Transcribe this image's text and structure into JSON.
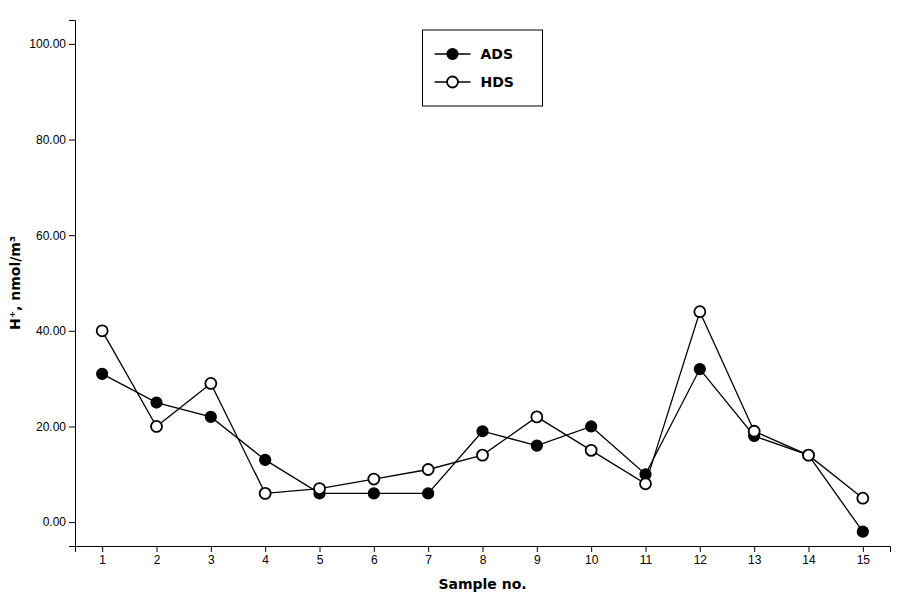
{
  "chart_data": {
    "type": "line",
    "x_label": "Sample no.",
    "y_label": "H⁺, nmol/m³",
    "x": [
      1,
      2,
      3,
      4,
      5,
      6,
      7,
      8,
      9,
      10,
      11,
      12,
      13,
      14,
      15
    ],
    "series": [
      {
        "name": "ADS",
        "color": "#000000",
        "marker": "circle",
        "values": [
          31,
          25,
          22,
          13,
          6,
          6,
          6,
          19,
          16,
          20,
          10,
          32,
          18,
          14,
          -2
        ]
      },
      {
        "name": "HDS",
        "color": "#000000",
        "marker": "open-circle",
        "values": [
          40,
          20,
          29,
          6,
          7,
          9,
          11,
          14,
          22,
          15,
          8,
          44,
          19,
          14,
          5
        ]
      }
    ],
    "xlim": [
      0.5,
      15.5
    ],
    "xticks": [
      1,
      2,
      3,
      4,
      5,
      6,
      7,
      8,
      9,
      10,
      11,
      12,
      13,
      14,
      15
    ],
    "ylim": [
      -5,
      105
    ],
    "yticks": [
      {
        "value": 0,
        "label": "0.00"
      },
      {
        "value": 20,
        "label": "20.00"
      },
      {
        "value": 40,
        "label": "40.00"
      },
      {
        "value": 60,
        "label": "60.00"
      },
      {
        "value": 80,
        "label": "80.00"
      },
      {
        "value": 100,
        "label": "100.00"
      }
    ],
    "grid": false,
    "legend": "upper center"
  }
}
